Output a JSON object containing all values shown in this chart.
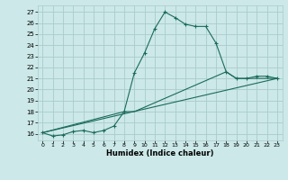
{
  "xlabel": "Humidex (Indice chaleur)",
  "bg_color": "#cce8e8",
  "grid_color": "#aacccc",
  "line_color": "#1a6b5a",
  "xlim": [
    -0.5,
    23.5
  ],
  "ylim": [
    15.4,
    27.6
  ],
  "xticks": [
    0,
    1,
    2,
    3,
    4,
    5,
    6,
    7,
    8,
    9,
    10,
    11,
    12,
    13,
    14,
    15,
    16,
    17,
    18,
    19,
    20,
    21,
    22,
    23
  ],
  "yticks": [
    16,
    17,
    18,
    19,
    20,
    21,
    22,
    23,
    24,
    25,
    26,
    27
  ],
  "line1_x": [
    0,
    1,
    2,
    3,
    4,
    5,
    6,
    7,
    8,
    9,
    10,
    11,
    12,
    13,
    14,
    15,
    16,
    17,
    18,
    19,
    20,
    21,
    22,
    23
  ],
  "line1_y": [
    16.1,
    15.8,
    15.9,
    16.2,
    16.3,
    16.1,
    16.3,
    16.7,
    18.0,
    21.5,
    23.3,
    25.5,
    27.0,
    26.5,
    25.9,
    25.7,
    25.7,
    24.2,
    21.6,
    21.0,
    21.0,
    21.2,
    21.2,
    21.0
  ],
  "line3_x": [
    0,
    23
  ],
  "line3_y": [
    16.1,
    21.0
  ],
  "line4_x": [
    0,
    8,
    9,
    18,
    19,
    23
  ],
  "line4_y": [
    16.1,
    18.0,
    18.0,
    21.6,
    21.0,
    21.0
  ]
}
